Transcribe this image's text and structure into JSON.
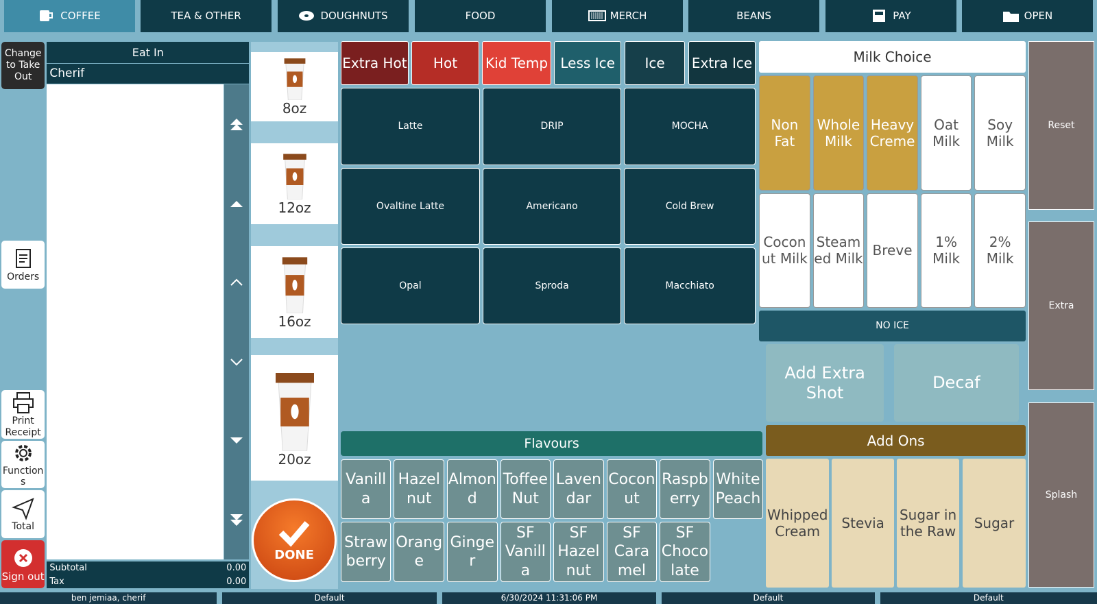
{
  "tabs": [
    "COFFEE",
    "TEA & OTHER",
    "DOUGHNUTS",
    "FOOD",
    "MERCH",
    "BEANS",
    "PAY",
    "OPEN"
  ],
  "sidebar": {
    "take_out": "Change to Take Out",
    "orders": "Orders",
    "print": "Print Receipt",
    "functions": "Functions",
    "total": "Total",
    "sign_out": "Sign out"
  },
  "order": {
    "mode": "Eat In",
    "customer": "Cherif",
    "subtotal_label": "Subtotal",
    "subtotal": "0.00",
    "tax_label": "Tax",
    "tax": "0.00"
  },
  "sizes": [
    "8oz",
    "12oz",
    "16oz",
    "20oz"
  ],
  "done": "DONE",
  "temps": [
    "Extra Hot",
    "Hot",
    "Kid Temp",
    "Less Ice",
    "Ice",
    "Extra Ice"
  ],
  "drinks": [
    "Latte",
    "DRIP",
    "MOCHA",
    "Ovaltine Latte",
    "Americano",
    "Cold Brew",
    "Opal",
    "Sproda",
    "Macchiato"
  ],
  "milk": {
    "title": "Milk Choice",
    "options": [
      "Non Fat",
      "Whole Milk",
      "Heavy Creme",
      "Oat Milk",
      "Soy Milk",
      "Coconut Milk",
      "Steamed Milk",
      "Breve",
      "1% Milk",
      "2% Milk"
    ]
  },
  "no_ice": "NO ICE",
  "extra_shot": "Add Extra Shot",
  "decaf": "Decaf",
  "flavours": {
    "title": "Flavours",
    "items": [
      "Vanilla",
      "Hazelnut",
      "Almond",
      "Toffee Nut",
      "Lavendar",
      "Coconut",
      "Raspberry",
      "White Peach",
      "Strawberry",
      "Orange",
      "Ginger",
      "SF Vanilla",
      "SF Hazelnut",
      "SF Caramel",
      "SF Chocolate"
    ]
  },
  "add_ons": {
    "title": "Add Ons",
    "items": [
      "Whipped Cream",
      "Stevia",
      "Sugar in the Raw",
      "Sugar"
    ]
  },
  "right": [
    "Reset",
    "Extra",
    "Splash"
  ],
  "status": [
    "ben jemiaa, cherif",
    "Default",
    "6/30/2024 11:31:06 PM",
    "Default",
    "Default"
  ]
}
